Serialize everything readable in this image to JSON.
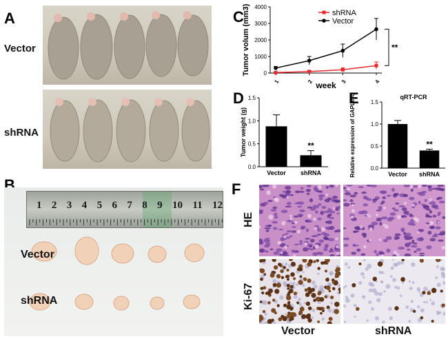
{
  "panels": {
    "A": {
      "letter": "A",
      "vector_label": "Vector",
      "shrna_label": "shRNA"
    },
    "B": {
      "letter": "B",
      "vector_label": "Vector",
      "shrna_label": "shRNA",
      "ruler_numbers": [
        "1",
        "2",
        "3",
        "4",
        "5",
        "6",
        "7",
        "8",
        "9",
        "10",
        "11",
        "12"
      ]
    },
    "F": {
      "letter": "F",
      "he_label": "HE",
      "ki67_label": "Ki-67",
      "col_vector": "Vector",
      "col_shrna": "shRNA"
    }
  },
  "chart_data": [
    {
      "id": "C",
      "letter": "C",
      "type": "line",
      "title": "",
      "xlabel": "week",
      "ylabel": "Tumor volum (mm3)",
      "x": [
        1,
        2,
        3,
        4
      ],
      "xticks": [
        "1",
        "2",
        "3",
        "4"
      ],
      "ylim": [
        0,
        4000
      ],
      "yticks": [
        "0",
        "1000",
        "2000",
        "3000",
        "4000"
      ],
      "series": [
        {
          "name": "shRNA",
          "color": "#e8262b",
          "values": [
            30,
            90,
            200,
            450
          ],
          "errors": [
            20,
            50,
            110,
            220
          ]
        },
        {
          "name": "Vector",
          "color": "#000000",
          "values": [
            300,
            750,
            1350,
            2650
          ],
          "errors": [
            100,
            250,
            400,
            650
          ]
        }
      ],
      "annotation": "**"
    },
    {
      "id": "D",
      "letter": "D",
      "type": "bar",
      "categories": [
        "Vector",
        "shRNA"
      ],
      "values": [
        0.88,
        0.25
      ],
      "errors": [
        0.25,
        0.1
      ],
      "ylabel": "Tumor weight (g)",
      "ylim": [
        0,
        1.5
      ],
      "yticks": [
        "0.0",
        "0.5",
        "1.0",
        "1.5"
      ],
      "annotation": "**",
      "bar_color": "#000000"
    },
    {
      "id": "E",
      "letter": "E",
      "type": "bar",
      "title": "qRT-PCR",
      "categories": [
        "Vector",
        "shRNA"
      ],
      "values": [
        1.0,
        0.4
      ],
      "errors": [
        0.08,
        0.03
      ],
      "ylabel": "Relative expression of GAPLINC",
      "ylim": [
        0,
        1.5
      ],
      "yticks": [
        "0.0",
        "0.5",
        "1.0",
        "1.5"
      ],
      "annotation": "**",
      "bar_color": "#000000"
    }
  ]
}
